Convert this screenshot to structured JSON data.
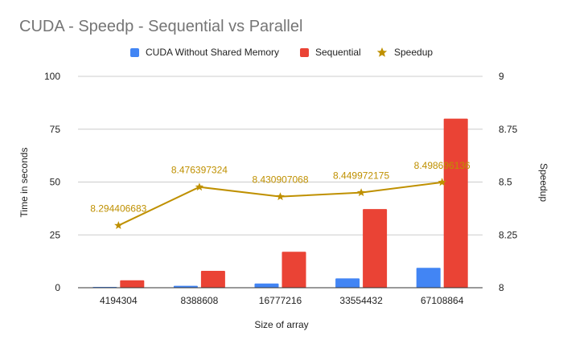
{
  "chart_data": {
    "type": "bar",
    "title": "CUDA - Speedp - Sequential vs Parallel",
    "xlabel": "Size of array",
    "ylabel": "Time in seconds",
    "y2label": "Speedup",
    "categories": [
      "4194304",
      "8388608",
      "16777216",
      "33554432",
      "67108864"
    ],
    "ylim": [
      0,
      100
    ],
    "yticks": [
      "0",
      "25",
      "50",
      "75",
      "100"
    ],
    "y2lim": [
      8,
      9
    ],
    "y2ticks": [
      "8",
      "8.25",
      "8.5",
      "8.75",
      "9"
    ],
    "series": [
      {
        "name": "CUDA Without Shared Memory",
        "kind": "bar",
        "color": "#4285f4",
        "values": [
          0.4,
          0.9,
          2.0,
          4.4,
          9.4
        ]
      },
      {
        "name": "Sequential",
        "kind": "bar",
        "color": "#ea4335",
        "values": [
          3.5,
          8.0,
          17.0,
          37.2,
          80.0
        ]
      },
      {
        "name": "Speedup",
        "kind": "line",
        "axis": "right",
        "color": "#bf9000",
        "values": [
          8.294406683,
          8.476397324,
          8.430907068,
          8.449972175,
          8.498696136
        ],
        "labels": [
          "8.294406683",
          "8.476397324",
          "8.430907068",
          "8.449972175",
          "8.498696136"
        ]
      }
    ],
    "legend_position": "top",
    "grid": true
  },
  "icons": {
    "speedup_marker": "star-icon"
  }
}
